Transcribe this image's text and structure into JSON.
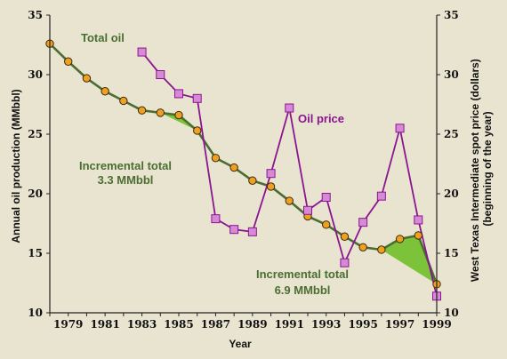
{
  "chart_data": {
    "type": "line",
    "xlabel": "Year",
    "ylabel_left": "Annual oil production (MMbbl)",
    "ylabel_right": "West Texas Intermediate spot price (dollars) (beginning of the year)",
    "xlim": [
      1978,
      1999
    ],
    "ylim_left": [
      10,
      35
    ],
    "ylim_right": [
      10,
      35
    ],
    "x_ticks": [
      1979,
      1981,
      1983,
      1985,
      1987,
      1989,
      1991,
      1993,
      1995,
      1997,
      1999
    ],
    "y_ticks_left": [
      10,
      15,
      20,
      25,
      30,
      35
    ],
    "y_ticks_right": [
      10,
      15,
      20,
      25,
      30,
      35
    ],
    "series": [
      {
        "name": "Total oil",
        "axis": "left",
        "marker": "circle",
        "color": "#f0a020",
        "line_color": "#4a6e32",
        "x": [
          1978,
          1979,
          1980,
          1981,
          1982,
          1983,
          1984,
          1985,
          1986,
          1987,
          1988,
          1989,
          1990,
          1991,
          1992,
          1993,
          1994,
          1995,
          1996,
          1997,
          1998,
          1999
        ],
        "values": [
          32.6,
          31.1,
          29.7,
          28.6,
          27.8,
          27.0,
          26.8,
          26.6,
          25.3,
          23.0,
          22.2,
          21.1,
          20.6,
          19.4,
          18.1,
          17.4,
          16.4,
          15.5,
          15.3,
          16.2,
          16.5,
          12.4
        ]
      },
      {
        "name": "Oil price",
        "axis": "right",
        "marker": "square",
        "color": "#d68ad6",
        "line_color": "#8a1590",
        "x": [
          1983,
          1984,
          1985,
          1986,
          1987,
          1988,
          1989,
          1990,
          1991,
          1992,
          1993,
          1994,
          1995,
          1996,
          1997,
          1998,
          1999
        ],
        "values": [
          31.9,
          30.0,
          28.4,
          28.0,
          17.9,
          17.0,
          16.8,
          21.7,
          27.2,
          18.6,
          19.7,
          14.2,
          17.6,
          19.8,
          25.5,
          17.8,
          11.4
        ]
      }
    ],
    "incremental_areas": [
      {
        "label": "Incremental total",
        "amount": "3.3 MMbbl",
        "color": "#7dc33a",
        "baseline": [
          [
            1984,
            26.8
          ],
          [
            1986,
            25.3
          ]
        ],
        "upper": [
          [
            1984,
            26.8
          ],
          [
            1985,
            26.6
          ],
          [
            1986,
            25.3
          ]
        ]
      },
      {
        "label": "Incremental total",
        "amount": "6.9 MMbbl",
        "color": "#7dc33a",
        "baseline": [
          [
            1996,
            15.3
          ],
          [
            1999,
            12.4
          ]
        ],
        "upper": [
          [
            1996,
            15.3
          ],
          [
            1997,
            16.2
          ],
          [
            1998,
            16.5
          ],
          [
            1999,
            12.4
          ]
        ]
      }
    ]
  },
  "colors": {
    "background": "#e9e4d0",
    "axis": "#222222",
    "green_line": "#4a6e32",
    "purple_line": "#8a1590",
    "fill": "#7dc33a"
  }
}
